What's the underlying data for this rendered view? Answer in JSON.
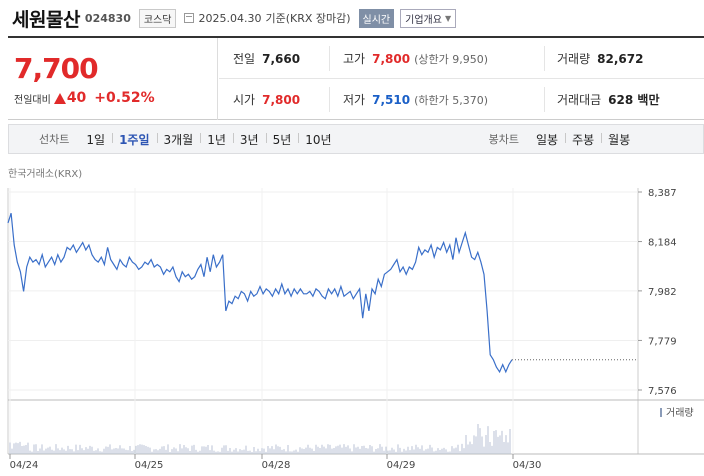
{
  "header": {
    "company_name": "세원물산",
    "code": "024830",
    "market": "코스닥",
    "date": "2025.04.30",
    "basis": "기준(KRX 장마감)",
    "realtime_label": "실시간",
    "company_info_label": "기업개요"
  },
  "quote": {
    "price": "7,700",
    "change_label": "전일대비",
    "change_value": "40",
    "change_percent": "+0.52%",
    "prev_close_label": "전일",
    "prev_close": "7,660",
    "open_label": "시가",
    "open": "7,800",
    "high_label": "고가",
    "high": "7,800",
    "upper_limit": "(상한가 9,950)",
    "low_label": "저가",
    "low": "7,510",
    "lower_limit": "(하한가 5,370)",
    "volume_label": "거래량",
    "volume": "82,672",
    "amount_label": "거래대금",
    "amount": "628 백만",
    "up_color": "#e12a2a",
    "down_color": "#1a5fc7"
  },
  "tabs": {
    "line_group": "선차트",
    "line": [
      "1일",
      "1주일",
      "3개월",
      "1년",
      "3년",
      "5년",
      "10년"
    ],
    "line_active": "1주일",
    "candle_group": "봉차트",
    "candle": [
      "일봉",
      "주봉",
      "월봉"
    ]
  },
  "chart": {
    "exchange_label": "한국거래소(KRX)",
    "volume_label": "거래량",
    "line_color": "#3a6fc9"
  },
  "chart_data": {
    "type": "line",
    "x_ticks": [
      "04/24",
      "04/25",
      "04/28",
      "04/29",
      "04/30"
    ],
    "y_ticks": [
      "8,387",
      "8,184",
      "7,982",
      "7,779",
      "7,576"
    ],
    "ylim": [
      7576,
      8387
    ],
    "last_price": 7700,
    "series": [
      {
        "values": [
          8260,
          8300,
          8170,
          8100,
          8060,
          7980,
          8080,
          8120,
          8100,
          8110,
          8090,
          8130,
          8080,
          8100,
          8120,
          8090,
          8130,
          8100,
          8120,
          8160,
          8150,
          8170,
          8140,
          8160,
          8180,
          8150,
          8170,
          8130,
          8110,
          8100,
          8120,
          8090,
          8160,
          8110,
          8090,
          8070,
          8110,
          8090,
          8080,
          8120,
          8100,
          8090,
          8070,
          8080,
          8100,
          8090,
          8110,
          8080,
          8090,
          8080,
          8050,
          8070,
          8060,
          8080,
          8040,
          8020,
          8060,
          8040,
          8050,
          8030,
          8040,
          8070,
          8090,
          8040,
          8120,
          8060,
          8130,
          8080,
          8100,
          8130,
          7900,
          7940,
          7930,
          7960,
          7950,
          7980,
          7970,
          7940,
          7980,
          7960,
          7970,
          8000,
          7970,
          7990,
          7980,
          7960,
          7990,
          7970,
          8010,
          7970,
          7990,
          7960,
          7990,
          7970,
          7990,
          7970,
          7970,
          7980,
          7960,
          7990,
          7980,
          7960,
          7950,
          7990,
          7970,
          7990,
          7960,
          8000,
          7960,
          7970,
          7980,
          7950,
          7970,
          7990,
          7870,
          7970,
          7900,
          7990,
          7970,
          8030,
          8000,
          8050,
          8060,
          8070,
          8090,
          8110,
          8060,
          8080,
          8050,
          8080,
          8070,
          8100,
          8160,
          8130,
          8150,
          8140,
          8170,
          8120,
          8160,
          8150,
          8180,
          8140,
          8170,
          8110,
          8200,
          8140,
          8180,
          8220,
          8170,
          8120,
          8110,
          8140,
          8100,
          8050,
          7900,
          7720,
          7700,
          7670,
          7650,
          7680,
          7650,
          7680,
          7700
        ]
      }
    ],
    "volume_label": "거래량"
  }
}
